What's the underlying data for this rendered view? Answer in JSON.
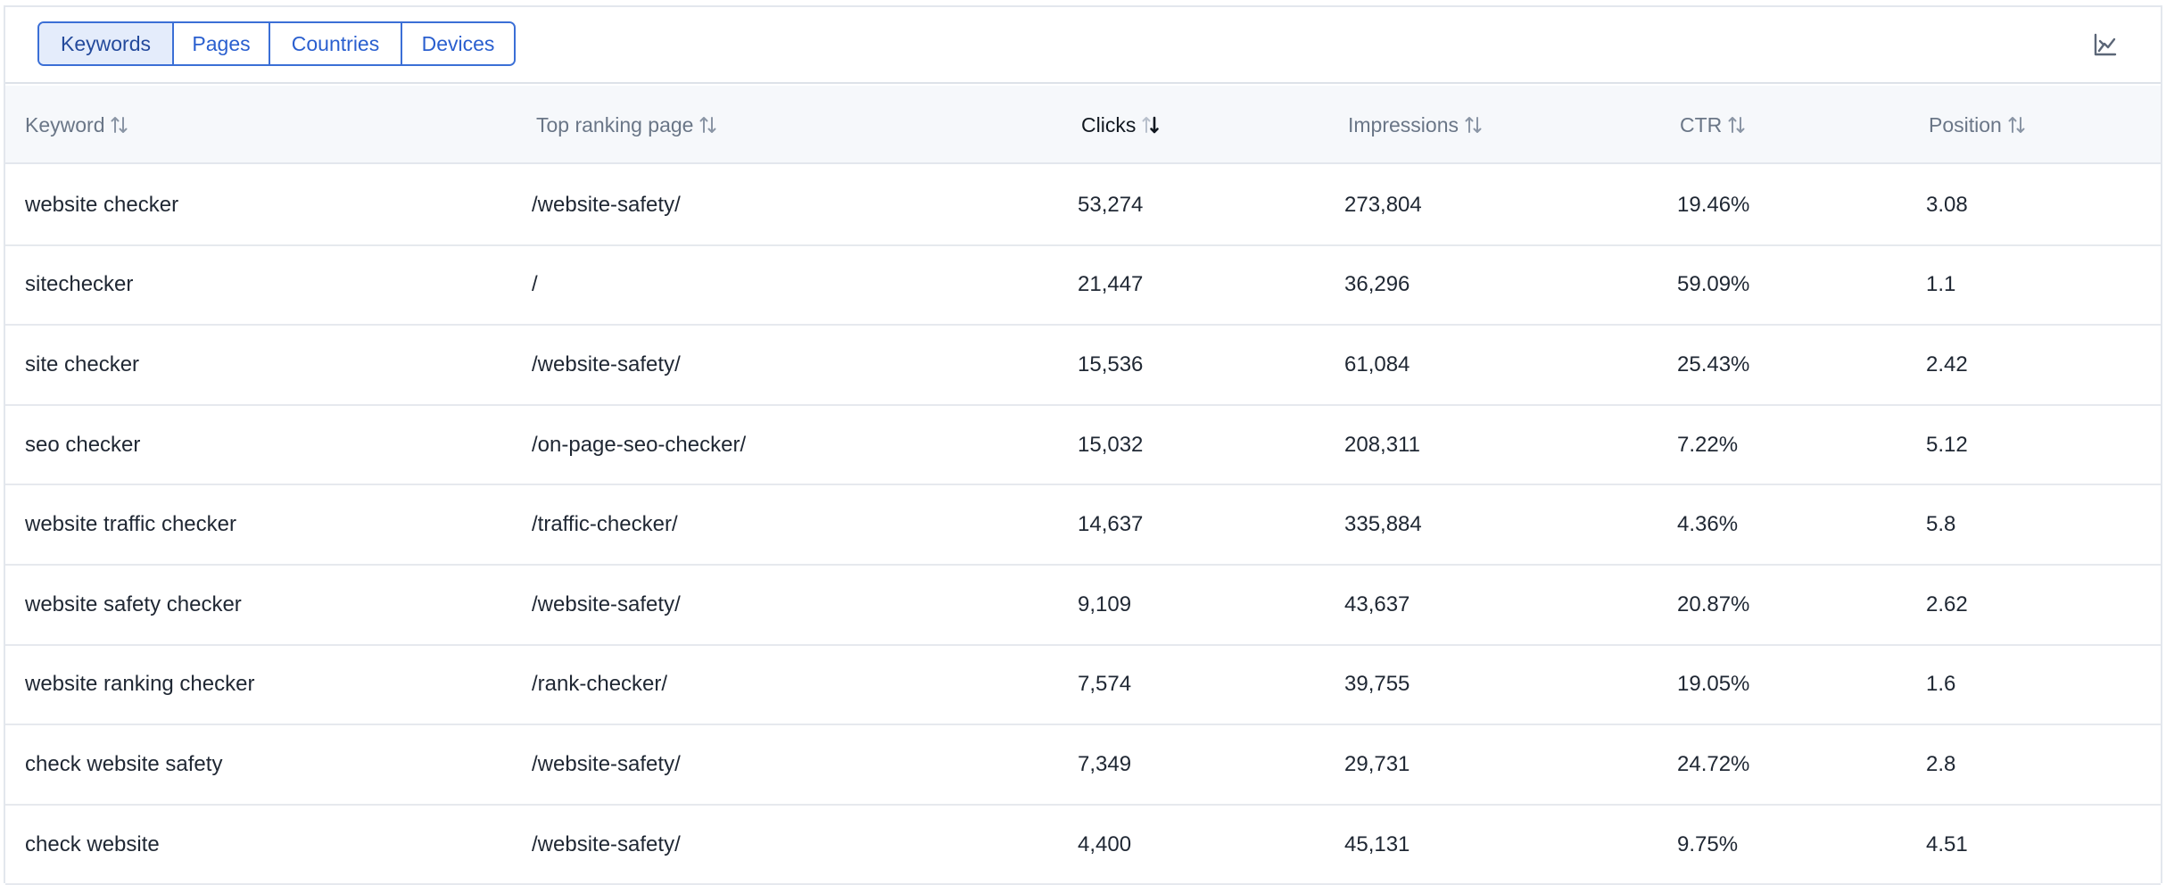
{
  "tabs": [
    "Keywords",
    "Pages",
    "Countries",
    "Devices"
  ],
  "active_tab": "Keywords",
  "toolbar": {
    "chart_icon": "chart-line-icon"
  },
  "table": {
    "columns": [
      {
        "label": "Keyword",
        "sort": "none"
      },
      {
        "label": "Top ranking page",
        "sort": "none"
      },
      {
        "label": "Clicks",
        "sort": "desc"
      },
      {
        "label": "Impressions",
        "sort": "none"
      },
      {
        "label": "CTR",
        "sort": "none"
      },
      {
        "label": "Position",
        "sort": "none"
      }
    ],
    "rows": [
      [
        "website checker",
        "/website-safety/",
        "53,274",
        "273,804",
        "19.46%",
        "3.08"
      ],
      [
        "sitechecker",
        "/",
        "21,447",
        "36,296",
        "59.09%",
        "1.1"
      ],
      [
        "site checker",
        "/website-safety/",
        "15,536",
        "61,084",
        "25.43%",
        "2.42"
      ],
      [
        "seo checker",
        "/on-page-seo-checker/",
        "15,032",
        "208,311",
        "7.22%",
        "5.12"
      ],
      [
        "website traffic checker",
        "/traffic-checker/",
        "14,637",
        "335,884",
        "4.36%",
        "5.8"
      ],
      [
        "website safety checker",
        "/website-safety/",
        "9,109",
        "43,637",
        "20.87%",
        "2.62"
      ],
      [
        "website ranking checker",
        "/rank-checker/",
        "7,574",
        "39,755",
        "19.05%",
        "1.6"
      ],
      [
        "check website safety",
        "/website-safety/",
        "7,349",
        "29,731",
        "24.72%",
        "2.8"
      ],
      [
        "check website",
        "/website-safety/",
        "4,400",
        "45,131",
        "9.75%",
        "4.51"
      ]
    ]
  },
  "colors": {
    "accent": "#3b6fd6",
    "active_tab_bg": "#e4ecfb",
    "header_bg": "#f6f8fb",
    "header_text": "#6a7687",
    "body_text": "#1f2733"
  }
}
